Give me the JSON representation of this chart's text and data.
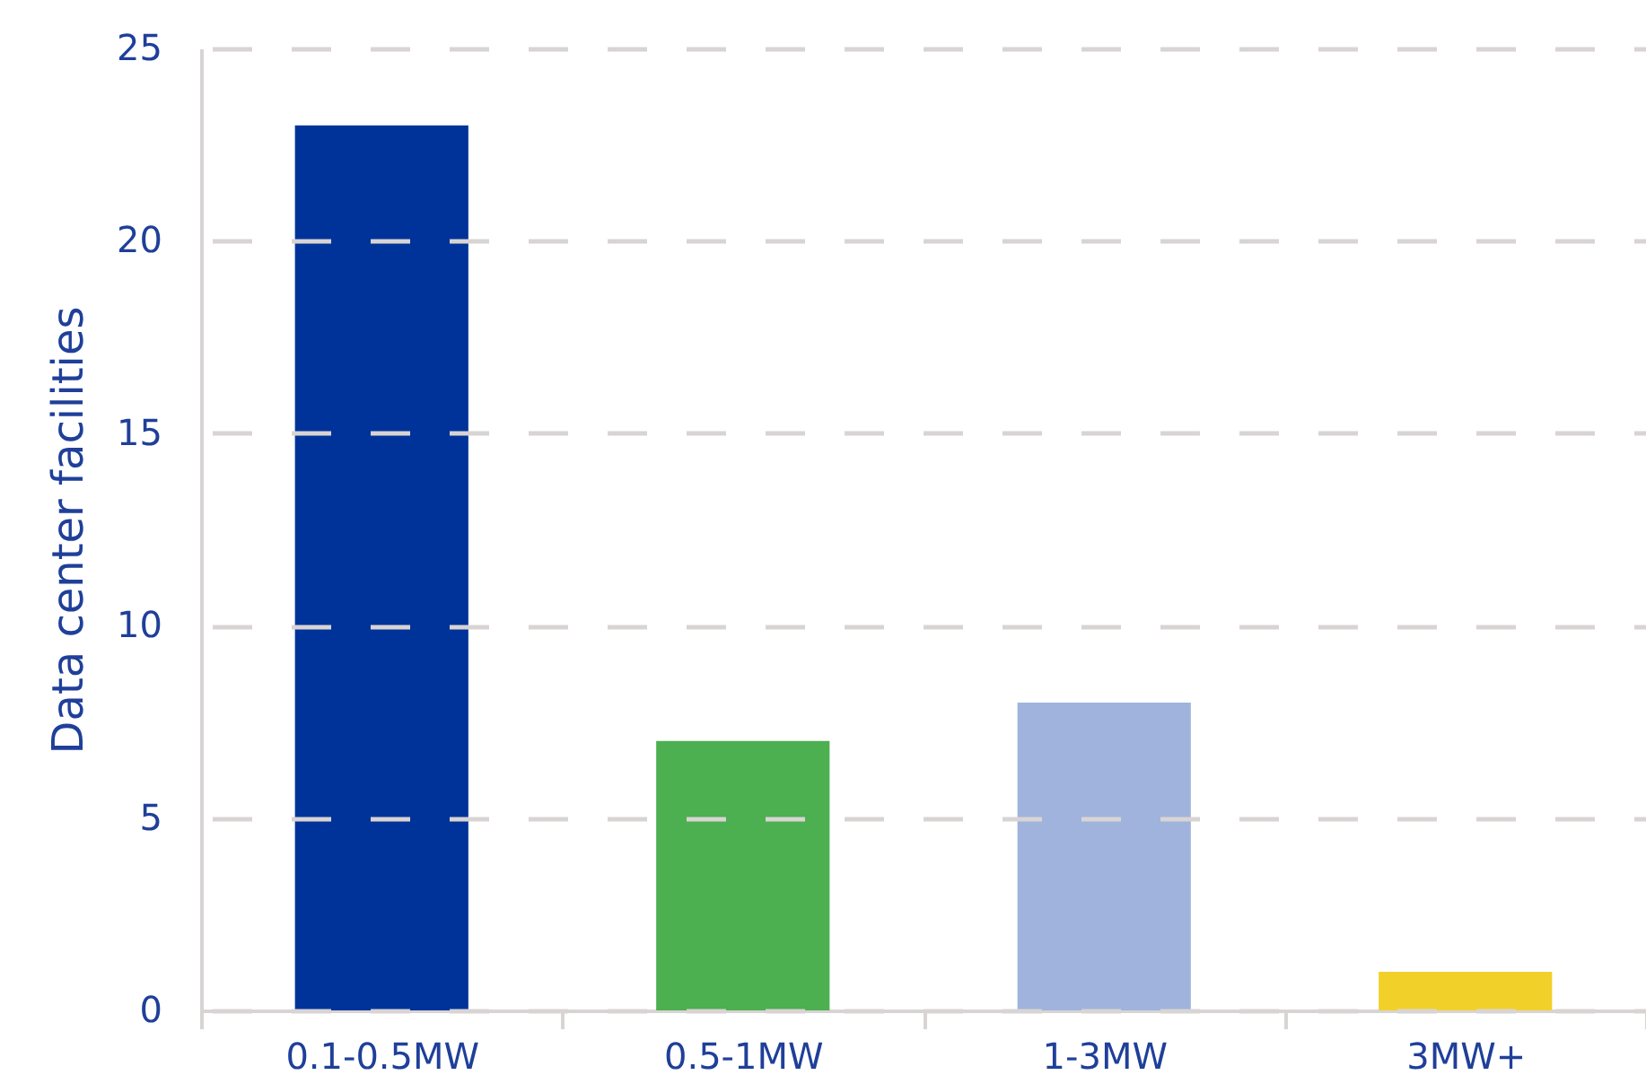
{
  "chart_data": {
    "type": "bar",
    "ylabel": "Data center facilities",
    "categories": [
      "0.1-0.5MW",
      "0.5-1MW",
      "1-3MW",
      "3MW+"
    ],
    "values": [
      23,
      7,
      8,
      1
    ],
    "colors": [
      "#003399",
      "#4caf50",
      "#9fb3dc",
      "#f2d02a"
    ],
    "ylim": [
      0,
      25
    ],
    "yticks": [
      0,
      5,
      10,
      15,
      20,
      25
    ],
    "grid": "y"
  }
}
